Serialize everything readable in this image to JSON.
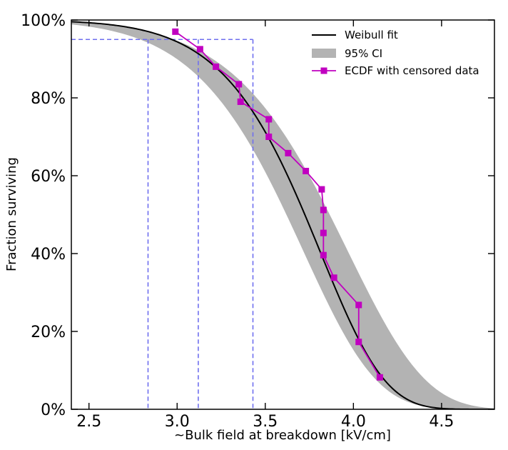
{
  "chart_data": {
    "type": "line",
    "xlabel": "~Bulk field at breakdown [kV/cm]",
    "ylabel": "Fraction surviving",
    "xlim": [
      2.4,
      4.8
    ],
    "ylim": [
      0,
      100
    ],
    "x_ticks": [
      2.5,
      3.0,
      3.5,
      4.0,
      4.5
    ],
    "x_tick_labels": [
      "2.5",
      "3.0",
      "3.5",
      "4.0",
      "4.5"
    ],
    "y_ticks": [
      0,
      20,
      40,
      60,
      80,
      100
    ],
    "y_tick_labels": [
      "0%",
      "20%",
      "40%",
      "60%",
      "80%",
      "100%"
    ],
    "legend": {
      "position": "top-right",
      "entries": [
        "Weibull fit",
        "95% CI",
        "ECDF with censored data"
      ]
    },
    "weibull_fit": {
      "name": "Weibull fit",
      "color": "#000000",
      "scale": 3.845,
      "shape": 11.5
    },
    "confidence_band": {
      "name": "95% CI",
      "color": "#b3b3b3",
      "lower": {
        "scale": 3.755,
        "shape": 10.0
      },
      "upper": {
        "scale": 4.01,
        "shape": 10.0
      }
    },
    "ecdf": {
      "name": "ECDF with censored data",
      "color": "#c000c0",
      "x": [
        2.99,
        3.13,
        3.22,
        3.35,
        3.36,
        3.52,
        3.52,
        3.63,
        3.73,
        3.82,
        3.83,
        3.83,
        3.83,
        3.89,
        4.03,
        4.03,
        4.15
      ],
      "y": [
        97,
        92.5,
        88,
        83.5,
        79,
        74.5,
        70,
        65.8,
        61.2,
        56.5,
        51.2,
        45.3,
        39.6,
        33.8,
        26.8,
        17.3,
        8.2
      ]
    },
    "reference_lines": {
      "color": "#6f6fef",
      "y_level": 95,
      "x_positions": [
        2.835,
        3.12,
        3.43
      ]
    }
  }
}
